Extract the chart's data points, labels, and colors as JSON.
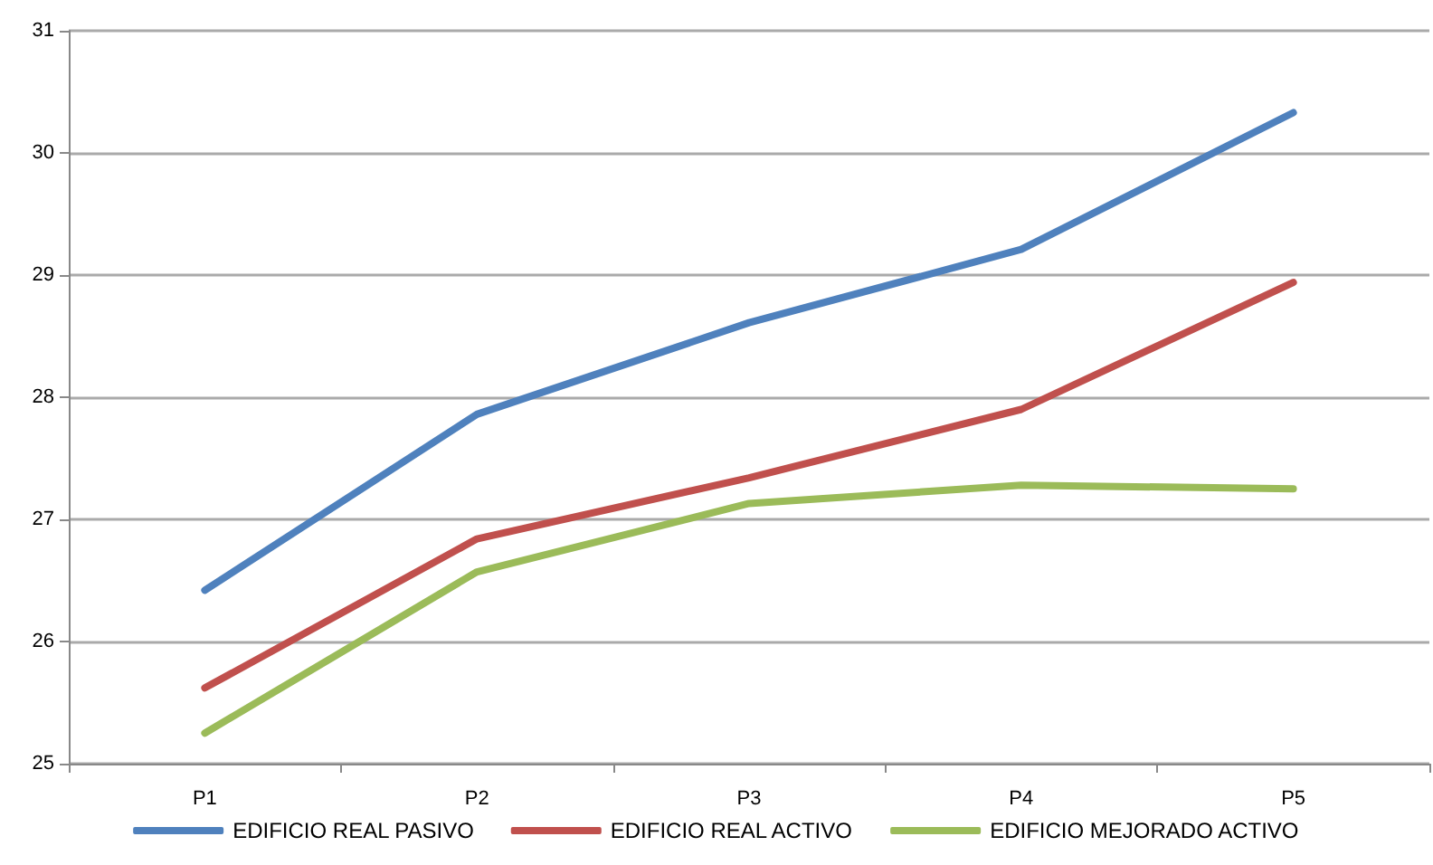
{
  "chart_data": {
    "type": "line",
    "categories": [
      "P1",
      "P2",
      "P3",
      "P4",
      "P5"
    ],
    "series": [
      {
        "name": "EDIFICIO REAL PASIVO",
        "color": "#4f81bd",
        "values": [
          26.42,
          27.86,
          28.61,
          29.21,
          30.33
        ]
      },
      {
        "name": "EDIFICIO REAL ACTIVO",
        "color": "#c0504d",
        "values": [
          25.62,
          26.84,
          27.34,
          27.9,
          28.94
        ]
      },
      {
        "name": "EDIFICIO MEJORADO ACTIVO",
        "color": "#9bbb59",
        "values": [
          25.25,
          26.57,
          27.13,
          27.28,
          27.25
        ]
      }
    ],
    "ylim": [
      25,
      31
    ],
    "yticks": [
      25,
      26,
      27,
      28,
      29,
      30,
      31
    ],
    "grid": "y",
    "legend": "bottom",
    "marker": "none",
    "line_style": "solid"
  }
}
